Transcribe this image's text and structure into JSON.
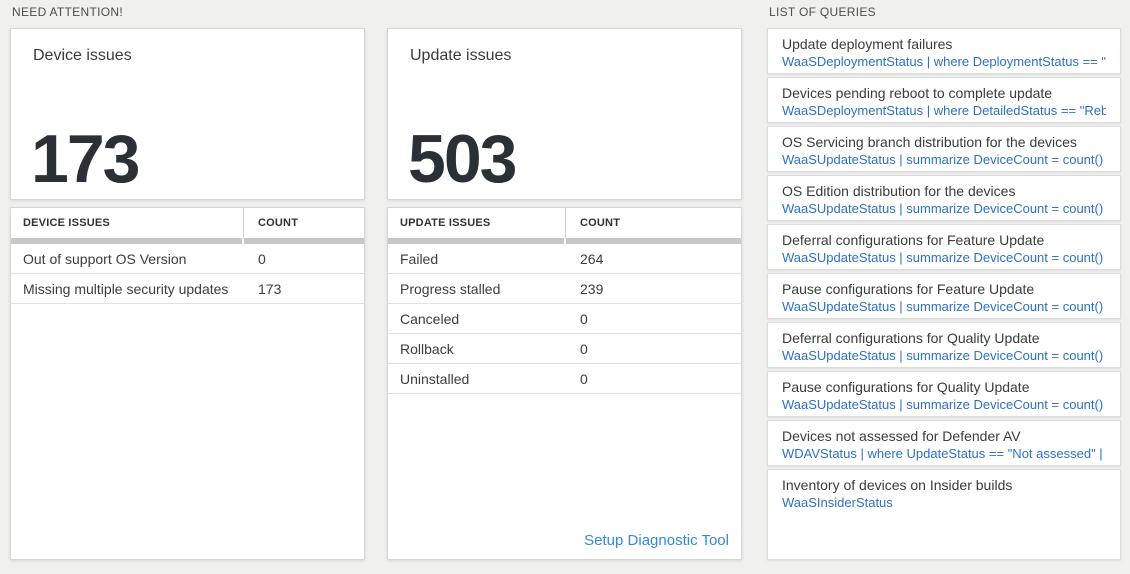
{
  "colors": {
    "background": "#f0f0ef",
    "query_blue": "#2e70c8",
    "link_blue": "#3488e0",
    "number_dark": "#2b3036",
    "scrollbar_gray": "#c7c7c7"
  },
  "need_attention": {
    "section_title": "NEED ATTENTION!",
    "device_tile": {
      "title": "Device issues",
      "count": "173"
    },
    "device_table": {
      "headers": [
        "DEVICE ISSUES",
        "COUNT"
      ],
      "rows": [
        {
          "label": "Out of support OS Version",
          "count": "0"
        },
        {
          "label": "Missing multiple security updates",
          "count": "173"
        }
      ]
    },
    "update_tile": {
      "title": "Update issues",
      "count": "503"
    },
    "update_table": {
      "headers": [
        "UPDATE ISSUES",
        "COUNT"
      ],
      "rows": [
        {
          "label": "Failed",
          "count": "264"
        },
        {
          "label": "Progress stalled",
          "count": "239"
        },
        {
          "label": "Canceled",
          "count": "0"
        },
        {
          "label": "Rollback",
          "count": "0"
        },
        {
          "label": "Uninstalled",
          "count": "0"
        }
      ]
    },
    "setup_link": "Setup Diagnostic Tool"
  },
  "queries": {
    "section_title": "LIST OF QUERIES",
    "items": [
      {
        "title": "Update deployment failures",
        "query": "WaaSDeploymentStatus | where DeploymentStatus == \"Failed\" |..."
      },
      {
        "title": "Devices pending reboot to complete update",
        "query": "WaaSDeploymentStatus | where DetailedStatus == \"Reboot pend..."
      },
      {
        "title": "OS Servicing branch distribution for the devices",
        "query": "WaaSUpdateStatus | summarize DeviceCount = count() by OSSer..."
      },
      {
        "title": "OS Edition distribution for the devices",
        "query": "WaaSUpdateStatus | summarize DeviceCount = count() by OSEdit..."
      },
      {
        "title": "Deferral configurations for Feature Update",
        "query": "WaaSUpdateStatus | summarize DeviceCount = count() by Featur..."
      },
      {
        "title": "Pause configurations for Feature Update",
        "query": "WaaSUpdateStatus | summarize DeviceCount = count() by Featur..."
      },
      {
        "title": "Deferral configurations for Quality Update",
        "query": "WaaSUpdateStatus | summarize DeviceCount = count() by Qualit..."
      },
      {
        "title": "Pause configurations for Quality Update",
        "query": "WaaSUpdateStatus | summarize DeviceCount = count() by Qualit..."
      },
      {
        "title": "Devices not assessed for Defender AV",
        "query": "WDAVStatus | where UpdateStatus == \"Not assessed\" | render ta..."
      },
      {
        "title": "Inventory of devices on Insider builds",
        "query": "WaaSInsiderStatus"
      }
    ]
  }
}
